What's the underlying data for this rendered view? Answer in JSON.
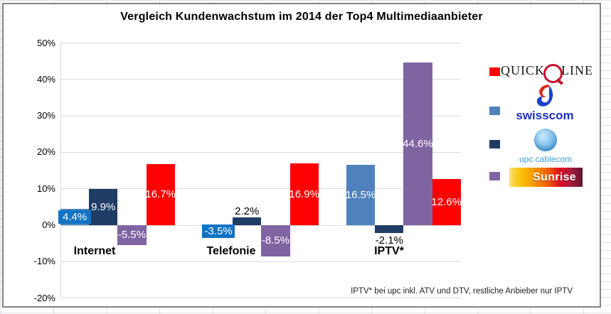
{
  "title": "Vergleich Kundenwachstum im 2014 der Top4 Multimediaanbieter",
  "footnote": "IPTV* bei upc inkl. ATV und DTV, restliche Anbieber nur IPTV",
  "axis": {
    "tick_labels": [
      "50%",
      "40%",
      "30%",
      "20%",
      "10%",
      "0%",
      "-10%",
      "-20%"
    ],
    "tick_values": [
      50,
      40,
      30,
      20,
      10,
      0,
      -10,
      -20
    ]
  },
  "chart_data": {
    "type": "bar",
    "title": "Vergleich Kundenwachstum im 2014 der Top4 Multimediaanbieter",
    "categories": [
      "Internet",
      "Telefonie",
      "IPTV*"
    ],
    "xlabel": "",
    "ylabel": "",
    "unit": "%",
    "ylim": [
      -20,
      50
    ],
    "grid": true,
    "legend_position": "right",
    "legend_order": [
      "Quickline",
      "swisscom",
      "upc cablecom",
      "Sunrise"
    ],
    "bar_order": [
      "swisscom",
      "upc cablecom",
      "Sunrise",
      "Quickline"
    ],
    "series": [
      {
        "name": "swisscom",
        "color": "#4F81BD",
        "label_box_color": "#1173C5",
        "values": [
          4.4,
          -3.5,
          16.5
        ],
        "labels": [
          "4.4%",
          "-3.5%",
          "16.5%"
        ],
        "label_styles": [
          "boxed",
          "boxed",
          "inside"
        ],
        "label_colors": [
          "#FFFFFF",
          "#FFFFFF",
          "#FFFFFF"
        ]
      },
      {
        "name": "upc cablecom",
        "color": "#1F3C64",
        "label_box_color": "#1F3C64",
        "values": [
          9.9,
          2.2,
          -2.1
        ],
        "labels": [
          "9.9%",
          "2.2%",
          "-2.1%"
        ],
        "label_styles": [
          "inside",
          "outside",
          "outside"
        ],
        "label_colors": [
          "#FFFFFF",
          "#000000",
          "#000000"
        ]
      },
      {
        "name": "Sunrise",
        "color": "#8064A2",
        "label_box_color": "#8064A2",
        "values": [
          -5.5,
          -8.5,
          44.6
        ],
        "labels": [
          "-5.5%",
          "-8.5%",
          "44.6%"
        ],
        "label_styles": [
          "inside",
          "inside",
          "inside"
        ],
        "label_colors": [
          "#FFFFFF",
          "#FFFFFF",
          "#FFFFFF"
        ]
      },
      {
        "name": "Quickline",
        "color": "#FE0000",
        "label_box_color": "#FE0000",
        "values": [
          16.7,
          16.9,
          12.6
        ],
        "labels": [
          "16.7%",
          "16.9%",
          "12.6%"
        ],
        "label_styles": [
          "inside",
          "inside",
          "inside"
        ],
        "label_colors": [
          "#FFFFFF",
          "#FFFFFF",
          "#FFFFFF"
        ]
      }
    ]
  },
  "legend": {
    "items": [
      {
        "name": "Quickline",
        "swatch": "#FF0000"
      },
      {
        "name": "swisscom",
        "swatch": "#4F81BD"
      },
      {
        "name": "upc cablecom",
        "swatch": "#1F3C64"
      },
      {
        "name": "Sunrise",
        "swatch": "#8064A2"
      }
    ]
  },
  "logos": {
    "quickline": {
      "left": "QUICK",
      "right": "LINE",
      "ring_color": "#C41230"
    },
    "swisscom": {
      "text": "swisscom",
      "text_color": "#1C30BE",
      "icon_red": "#DA291C",
      "icon_blue": "#1C44C8"
    },
    "upc": {
      "text": "upc cablecom",
      "text_color": "#3AA0DB"
    },
    "sunrise": {
      "text": "Sunrise"
    }
  }
}
